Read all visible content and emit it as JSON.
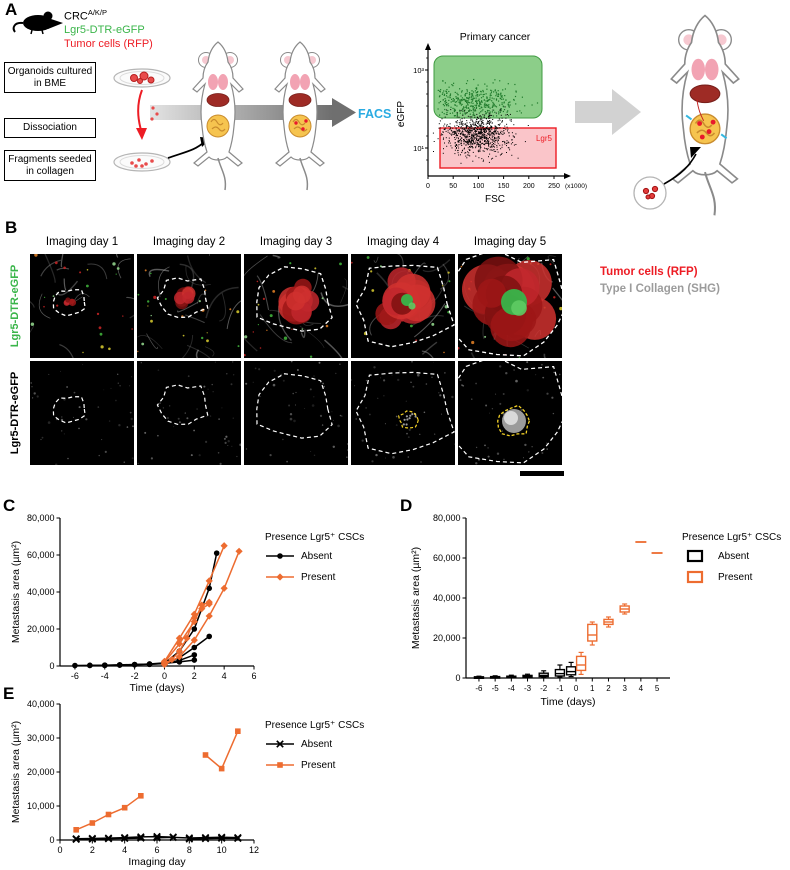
{
  "colors": {
    "gfp_green": "#3ab54a",
    "rfp_red": "#ed1c24",
    "present_orange": "#ed6c30",
    "shg_gray": "#9c9c9c",
    "facs_blue": "#29abe2"
  },
  "panel_a": {
    "label": "A",
    "strain_main": "CRC",
    "strain_sup": "A/K/P",
    "reporter": "Lgr5-DTR-eGFP",
    "tumor_cells": "Tumor cells (RFP)",
    "steps": [
      "Organoids cultured in BME",
      "Dissociation",
      "Fragments seeded in collagen"
    ],
    "facs_arrow_label": "FACS",
    "facs": {
      "title": "Primary cancer",
      "xlabel": "FSC",
      "ylabel": "eGFP",
      "x_ticks": [
        "0",
        "50",
        "100",
        "150",
        "200",
        "250"
      ],
      "x_unit": "(x1000)",
      "y_tick_top": "10³",
      "y_tick_bottom": "10¹",
      "gate_label": "Lgr5"
    }
  },
  "panel_b": {
    "label": "B",
    "column_headers": [
      "Imaging day 1",
      "Imaging day 2",
      "Imaging day 3",
      "Imaging day 4",
      "Imaging day 5"
    ],
    "row_label_top": "Lgr5-DTR-eGFP",
    "row_label_bottom": "Lgr5-DTR-eGFP",
    "legend_line1": "Tumor cells (RFP)",
    "legend_line2": "Type I Collagen (SHG)"
  },
  "panel_c": {
    "label": "C"
  },
  "panel_d": {
    "label": "D"
  },
  "panel_e": {
    "label": "E"
  },
  "chart_data": [
    {
      "id": "C",
      "type": "line",
      "xlabel": "Time (days)",
      "ylabel": "Metastasis area (µm²)",
      "xlim": [
        -7,
        6
      ],
      "ylim": [
        0,
        80000
      ],
      "xticks": [
        -6,
        -4,
        -2,
        0,
        2,
        4,
        6
      ],
      "yticks": [
        0,
        20000,
        40000,
        60000,
        80000
      ],
      "legend_title": "Presence Lgr5⁺ CSCs",
      "legend_position": "right",
      "series": [
        {
          "name": "Absent",
          "color": "#000000",
          "marker": "circle",
          "lines": [
            [
              [
                -6,
                250
              ],
              [
                -5,
                350
              ],
              [
                -4,
                450
              ],
              [
                -3,
                600
              ],
              [
                -2,
                800
              ],
              [
                -1,
                1000
              ],
              [
                0,
                1400
              ],
              [
                1,
                2200
              ],
              [
                2,
                3200
              ]
            ],
            [
              [
                -5,
                300
              ],
              [
                -4,
                400
              ],
              [
                -3,
                550
              ],
              [
                -2,
                750
              ],
              [
                -1,
                1100
              ],
              [
                0,
                1700
              ],
              [
                1,
                4500
              ],
              [
                2,
                10000
              ],
              [
                3,
                16000
              ]
            ],
            [
              [
                -4,
                350
              ],
              [
                -3,
                500
              ],
              [
                -2,
                700
              ],
              [
                -1,
                900
              ],
              [
                0,
                1300
              ],
              [
                1,
                3000
              ],
              [
                2,
                6000
              ]
            ],
            [
              [
                0,
                1500
              ],
              [
                1,
                8000
              ],
              [
                2,
                20000
              ],
              [
                3,
                42000
              ],
              [
                3.5,
                61000
              ]
            ]
          ]
        },
        {
          "name": "Present",
          "color": "#ed6c30",
          "marker": "diamond",
          "lines": [
            [
              [
                0,
                1200
              ],
              [
                0.5,
                3500
              ],
              [
                1,
                8000
              ],
              [
                1.5,
                15000
              ],
              [
                2,
                26000
              ],
              [
                2.5,
                31000
              ],
              [
                3,
                33500
              ]
            ],
            [
              [
                0,
                2000
              ],
              [
                1,
                12000
              ],
              [
                2,
                24000
              ],
              [
                2.5,
                33000
              ],
              [
                3,
                34500
              ]
            ],
            [
              [
                0,
                800
              ],
              [
                1,
                5000
              ],
              [
                2,
                14000
              ],
              [
                3,
                27000
              ],
              [
                4,
                42000
              ],
              [
                5,
                62000
              ]
            ],
            [
              [
                0,
                2500
              ],
              [
                1,
                15000
              ],
              [
                2,
                28000
              ],
              [
                3,
                46000
              ],
              [
                4,
                65000
              ]
            ]
          ]
        }
      ]
    },
    {
      "id": "D",
      "type": "box",
      "xlabel": "Time (days)",
      "ylabel": "Metastasis area (µm²)",
      "xlim": [
        -6.8,
        5.8
      ],
      "ylim": [
        0,
        80000
      ],
      "xticks": [
        -6,
        -5,
        -4,
        -3,
        -2,
        -1,
        0,
        1,
        2,
        3,
        4,
        5
      ],
      "yticks": [
        0,
        20000,
        40000,
        60000,
        80000
      ],
      "legend_title": "Presence Lgr5⁺ CSCs",
      "legend_position": "right",
      "series": [
        {
          "name": "Absent",
          "color": "#000000"
        },
        {
          "name": "Present",
          "color": "#ed6c30"
        }
      ],
      "boxes": [
        {
          "x": -6,
          "series": 0,
          "lo": 100,
          "q1": 200,
          "med": 350,
          "q3": 600,
          "hi": 900
        },
        {
          "x": -5,
          "series": 0,
          "lo": 150,
          "q1": 250,
          "med": 400,
          "q3": 700,
          "hi": 1100
        },
        {
          "x": -4,
          "series": 0,
          "lo": 200,
          "q1": 300,
          "med": 500,
          "q3": 900,
          "hi": 1400
        },
        {
          "x": -3,
          "series": 0,
          "lo": 250,
          "q1": 450,
          "med": 700,
          "q3": 1300,
          "hi": 1900
        },
        {
          "x": -2,
          "series": 0,
          "lo": 300,
          "q1": 700,
          "med": 1300,
          "q3": 2400,
          "hi": 3600
        },
        {
          "x": -1,
          "series": 0,
          "lo": 500,
          "q1": 1000,
          "med": 2200,
          "q3": 4200,
          "hi": 6500
        },
        {
          "x": 0,
          "series": 0,
          "lo": 700,
          "q1": 1600,
          "med": 3200,
          "q3": 5600,
          "hi": 7800
        },
        {
          "x": 0,
          "series": 1,
          "lo": 1800,
          "q1": 3800,
          "med": 6500,
          "q3": 10800,
          "hi": 12800
        },
        {
          "x": 1,
          "series": 1,
          "lo": 16500,
          "q1": 18500,
          "med": 21500,
          "q3": 26800,
          "hi": 28000
        },
        {
          "x": 2,
          "series": 1,
          "lo": 25500,
          "q1": 26800,
          "med": 28000,
          "q3": 29300,
          "hi": 30500
        },
        {
          "x": 3,
          "series": 1,
          "lo": 32000,
          "q1": 33000,
          "med": 34500,
          "q3": 36000,
          "hi": 37000
        },
        {
          "x": 4,
          "series": 1,
          "med": 68000
        },
        {
          "x": 5,
          "series": 1,
          "med": 62500
        }
      ]
    },
    {
      "id": "E",
      "type": "line",
      "xlabel": "Imaging day",
      "ylabel": "Metastasis area (µm²)",
      "xlim": [
        0,
        12
      ],
      "ylim": [
        0,
        40000
      ],
      "xticks": [
        0,
        2,
        4,
        6,
        8,
        10,
        12
      ],
      "yticks": [
        0,
        10000,
        20000,
        30000,
        40000
      ],
      "legend_title": "Presence Lgr5⁺ CSCs",
      "legend_position": "right",
      "series": [
        {
          "name": "Absent",
          "color": "#000000",
          "marker": "x",
          "lines": [
            [
              [
                1,
                350
              ],
              [
                2,
                450
              ],
              [
                3,
                550
              ],
              [
                4,
                700
              ],
              [
                5,
                900
              ],
              [
                6,
                1000
              ],
              [
                7,
                850
              ]
            ],
            [
              [
                1,
                200
              ],
              [
                2,
                280
              ],
              [
                3,
                380
              ],
              [
                4,
                480
              ],
              [
                5,
                560
              ]
            ],
            [
              [
                6,
                650
              ],
              [
                7,
                750
              ],
              [
                8,
                600
              ],
              [
                9,
                700
              ],
              [
                10,
                800
              ],
              [
                11,
                700
              ]
            ],
            [
              [
                8,
                300
              ],
              [
                9,
                420
              ],
              [
                10,
                520
              ],
              [
                11,
                480
              ]
            ]
          ]
        },
        {
          "name": "Present",
          "color": "#ed6c30",
          "marker": "square",
          "lines": [
            [
              [
                1,
                3000
              ],
              [
                2,
                5000
              ],
              [
                3,
                7500
              ],
              [
                4,
                9500
              ],
              [
                5,
                13000
              ]
            ],
            [
              [
                9,
                25000
              ],
              [
                10,
                21000
              ],
              [
                11,
                32000
              ]
            ]
          ]
        }
      ]
    }
  ]
}
